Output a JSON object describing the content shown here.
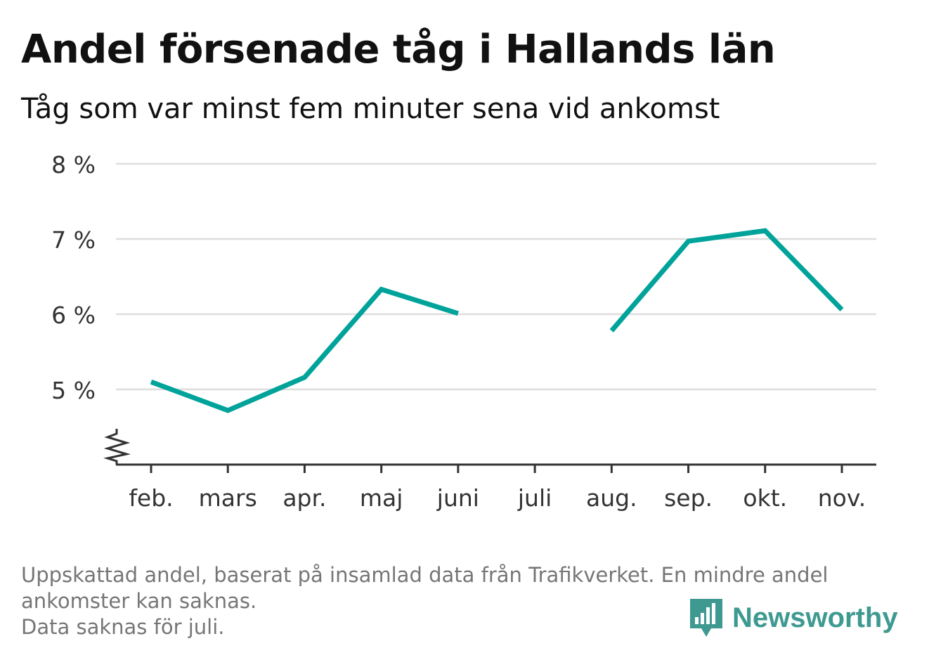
{
  "title": "Andel försenade tåg i Hallands län",
  "subtitle": "Tåg som var minst fem minuter sena vid ankomst",
  "footnote": {
    "line1": "Uppskattad andel, baserat på insamlad data från Trafikverket. En mindre andel",
    "line2": "ankomster kan saknas.",
    "line3": "Data saknas för juli."
  },
  "logo": {
    "text": "Newsworthy",
    "icon": "newsworthy-logo-icon"
  },
  "colors": {
    "line": "#00a39a",
    "grid": "#dddddd",
    "axis": "#333333",
    "text": "#333333"
  },
  "chart_data": {
    "type": "line",
    "title": "Andel försenade tåg i Hallands län",
    "subtitle": "Tåg som var minst fem minuter sena vid ankomst",
    "categories": [
      "feb.",
      "mars",
      "apr.",
      "maj",
      "juni",
      "juli",
      "aug.",
      "sep.",
      "okt.",
      "nov."
    ],
    "values": [
      5.1,
      4.72,
      5.16,
      6.33,
      6.01,
      null,
      5.78,
      6.97,
      7.11,
      6.06
    ],
    "yticks": [
      5,
      6,
      7,
      8
    ],
    "ytick_labels": [
      "5 %",
      "6 %",
      "7 %",
      "8 %"
    ],
    "ylim": [
      4,
      8
    ],
    "axis_break": true,
    "grid": true,
    "xlabel": "",
    "ylabel": ""
  }
}
